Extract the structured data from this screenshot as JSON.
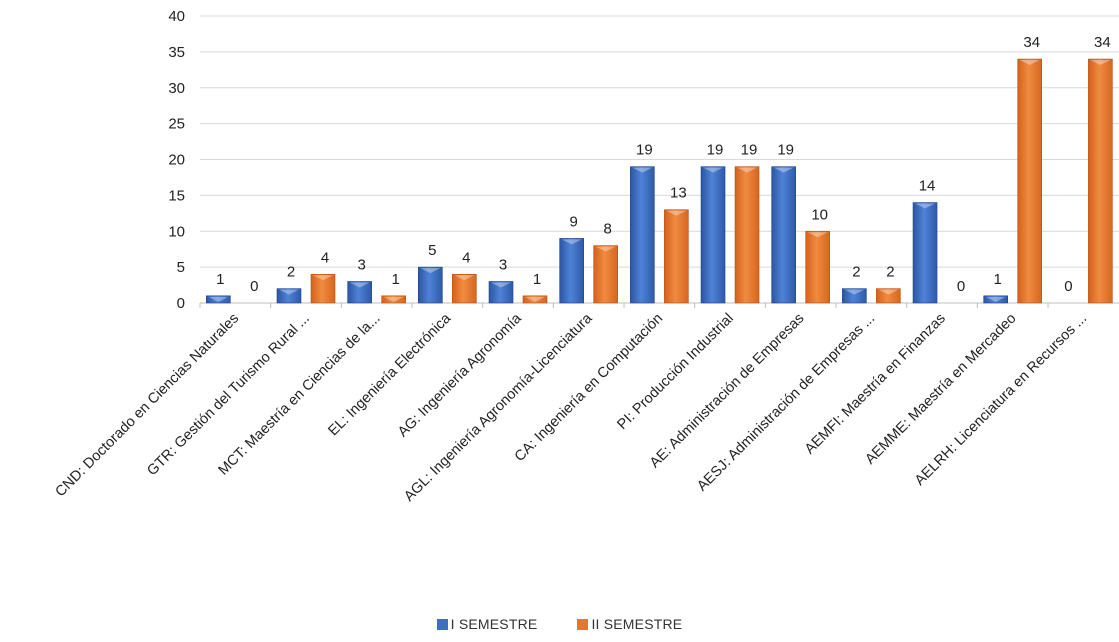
{
  "chart_data": {
    "type": "bar",
    "categories": [
      "CND: Doctorado en Ciencias Naturales",
      "GTR: Gestión del Turismo Rural ...",
      "MCT: Maestría en Ciencias de la...",
      "EL: Ingeniería Electrónica",
      "AG: Ingeniería Agronomía",
      "AGL: Ingeniería Agronomía-Licenciatura",
      "CA: Ingeniería en Computación",
      "PI: Producción Industrial",
      "AE: Administración de Empresas",
      "AESJ: Administración de Empresas ...",
      "AEMFI: Maestría en Finanzas",
      "AEMME: Maestría en Mercadeo",
      "AELRH: Licenciatura en Recursos ..."
    ],
    "series": [
      {
        "name": "I SEMESTRE",
        "color": "#3f6fc1",
        "values": [
          1,
          2,
          3,
          5,
          3,
          9,
          19,
          19,
          19,
          2,
          14,
          1,
          0
        ],
        "labels": [
          "1",
          "2",
          "3",
          "5",
          "3",
          "9",
          "19",
          "19",
          "19",
          "2",
          "14",
          "1",
          "0"
        ]
      },
      {
        "name": "II SEMESTRE",
        "color": "#e5762c",
        "values": [
          0,
          4,
          1,
          4,
          1,
          8,
          13,
          19,
          10,
          2,
          0,
          34,
          34
        ],
        "labels": [
          "0",
          "4",
          "1",
          "4",
          "1",
          "8",
          "13",
          "19",
          "10",
          "2",
          "0",
          "34",
          "34"
        ]
      }
    ],
    "yticks": [
      "0",
      "5",
      "10",
      "15",
      "20",
      "25",
      "30",
      "35",
      "40"
    ],
    "ylim": [
      0,
      40
    ],
    "grid": true,
    "legend": "bottom-center"
  }
}
